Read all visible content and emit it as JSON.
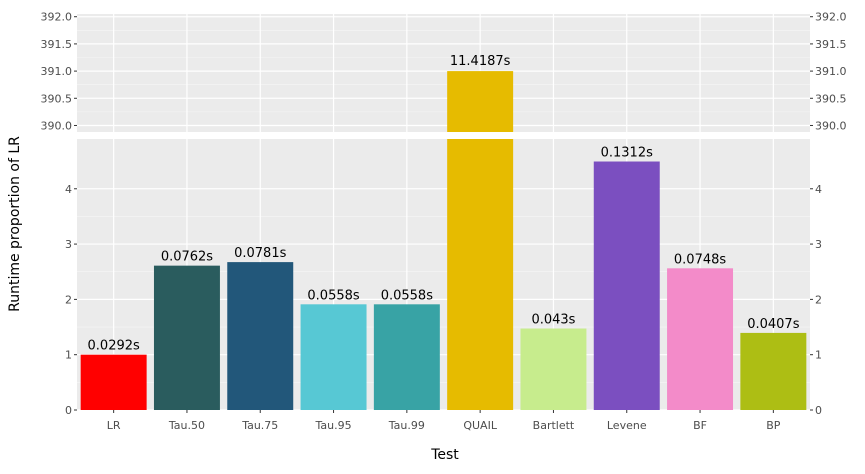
{
  "chart_data": {
    "type": "bar",
    "xlabel": "Test",
    "ylabel": "Runtime proportion of LR",
    "categories": [
      "LR",
      "Tau.50",
      "Tau.75",
      "Tau.95",
      "Tau.99",
      "QUAIL",
      "Bartlett",
      "Levene",
      "BF",
      "BP"
    ],
    "values": [
      1.0,
      2.61,
      2.674,
      1.911,
      1.911,
      391.0,
      1.473,
      4.493,
      2.562,
      1.394
    ],
    "labels": [
      "0.0292s",
      "0.0762s",
      "0.0781s",
      "0.0558s",
      "0.0558s",
      "11.4187s",
      "0.043s",
      "0.1312s",
      "0.0748s",
      "0.0407s"
    ],
    "colors": [
      "#ff0000",
      "#2a5c5e",
      "#22577a",
      "#57c8d4",
      "#38a3a5",
      "#e6bb00",
      "#c7ec8d",
      "#7b4fc0",
      "#f38bc9",
      "#adbe14"
    ],
    "axis_break": true,
    "lower_panel": {
      "ylim": [
        0,
        4.9
      ],
      "ticks": [
        0,
        1,
        2,
        3,
        4
      ],
      "tick_labels": [
        "0",
        "1",
        "2",
        "3",
        "4"
      ]
    },
    "upper_panel": {
      "ylim": [
        389.88,
        392.05
      ],
      "ticks": [
        390.0,
        390.5,
        391.0,
        391.5,
        392.0
      ],
      "tick_labels": [
        "390.0",
        "390.5",
        "391.0",
        "391.5",
        "392.0"
      ]
    },
    "grid": true,
    "secondary_y_axis": true
  }
}
